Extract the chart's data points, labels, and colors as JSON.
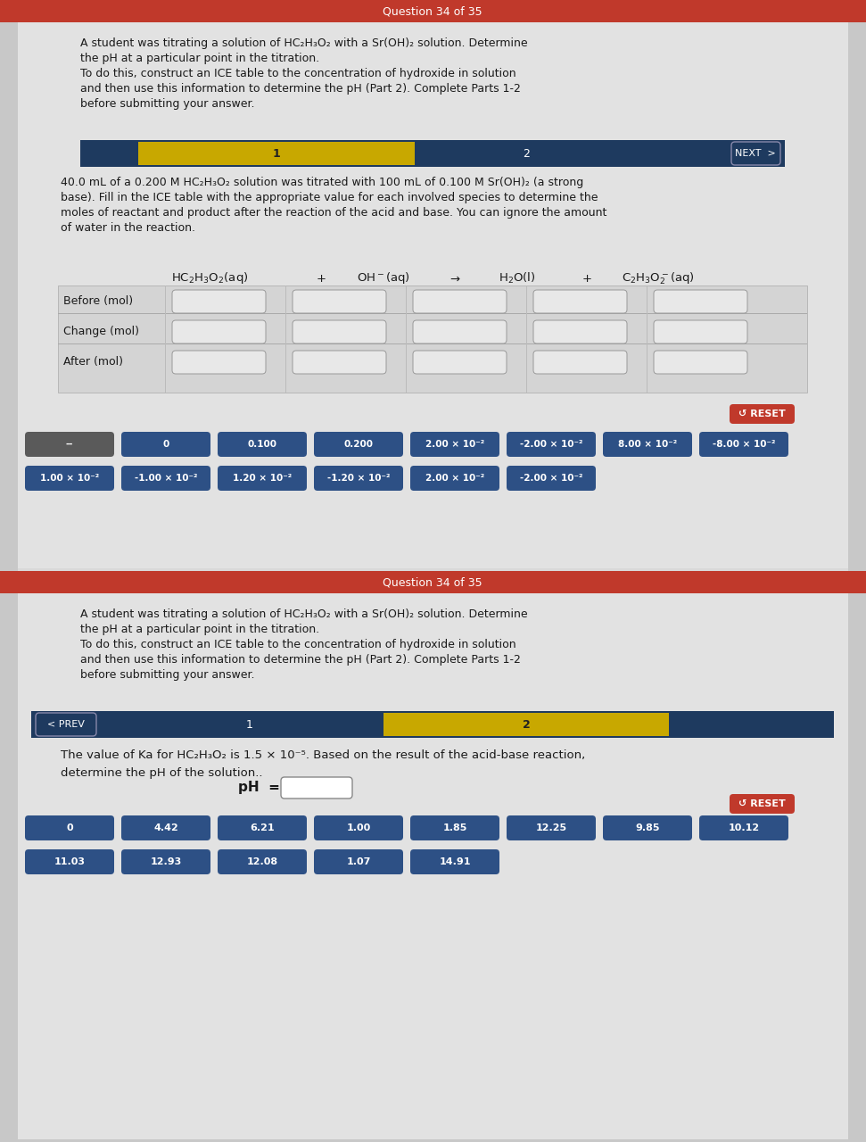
{
  "title": "Question 34 of 35",
  "bg_outer": "#b0b0b0",
  "bg_panel": "#e0e0e0",
  "bg_white_area": "#e8e8e8",
  "header_color": "#c0392b",
  "dark_navy": "#1e3a5f",
  "btn_blue": "#2d5085",
  "btn_gray": "#5a5a5a",
  "btn_red": "#c0392b",
  "text_dark": "#1a1a1a",
  "part1": {
    "intro_lines": [
      "A student was titrating a solution of HC₂H₃O₂ with a Sr(OH)₂ solution. Determine",
      "the pH at a particular point in the titration.",
      "To do this, construct an ICE table to the concentration of hydroxide in solution",
      "and then use this information to determine the pH (Part 2). Complete Parts 1-2",
      "before submitting your answer."
    ],
    "body_lines": [
      "40.0 mL of a 0.200 M HC₂H₃O₂ solution was titrated with 100 mL of 0.100 M Sr(OH)₂ (a strong",
      "base). Fill in the ICE table with the appropriate value for each involved species to determine the",
      "moles of reactant and product after the reaction of the acid and base. You can ignore the amount",
      "of water in the reaction."
    ],
    "row_labels": [
      "Before (mol)",
      "Change (mol)",
      "After (mol)"
    ],
    "reset_text": "↺ RESET",
    "btn_row1": [
      "--",
      "0",
      "0.100",
      "0.200",
      "2.00 × 10⁻²",
      "-2.00 × 10⁻²",
      "8.00 × 10⁻²",
      "-8.00 × 10⁻²"
    ],
    "btn_row2": [
      "1.00 × 10⁻²",
      "-1.00 × 10⁻²",
      "1.20 × 10⁻²",
      "-1.20 × 10⁻²",
      "2.00 × 10⁻²",
      "-2.00 × 10⁻²"
    ]
  },
  "part2": {
    "intro_lines": [
      "A student was titrating a solution of HC₂H₃O₂ with a Sr(OH)₂ solution. Determine",
      "the pH at a particular point in the titration.",
      "To do this, construct an ICE table to the concentration of hydroxide in solution",
      "and then use this information to determine the pH (Part 2). Complete Parts 1-2",
      "before submitting your answer."
    ],
    "body_lines": [
      "The value of Ka for HC₂H₃O₂ is 1.5 × 10⁻⁵. Based on the result of the acid-base reaction,",
      "determine the pH of the solution.."
    ],
    "reset_text": "↺ RESET",
    "btn_row1": [
      "0",
      "4.42",
      "6.21",
      "1.00",
      "1.85",
      "12.25",
      "9.85",
      "10.12"
    ],
    "btn_row2": [
      "11.03",
      "12.93",
      "12.08",
      "1.07",
      "14.91"
    ]
  }
}
